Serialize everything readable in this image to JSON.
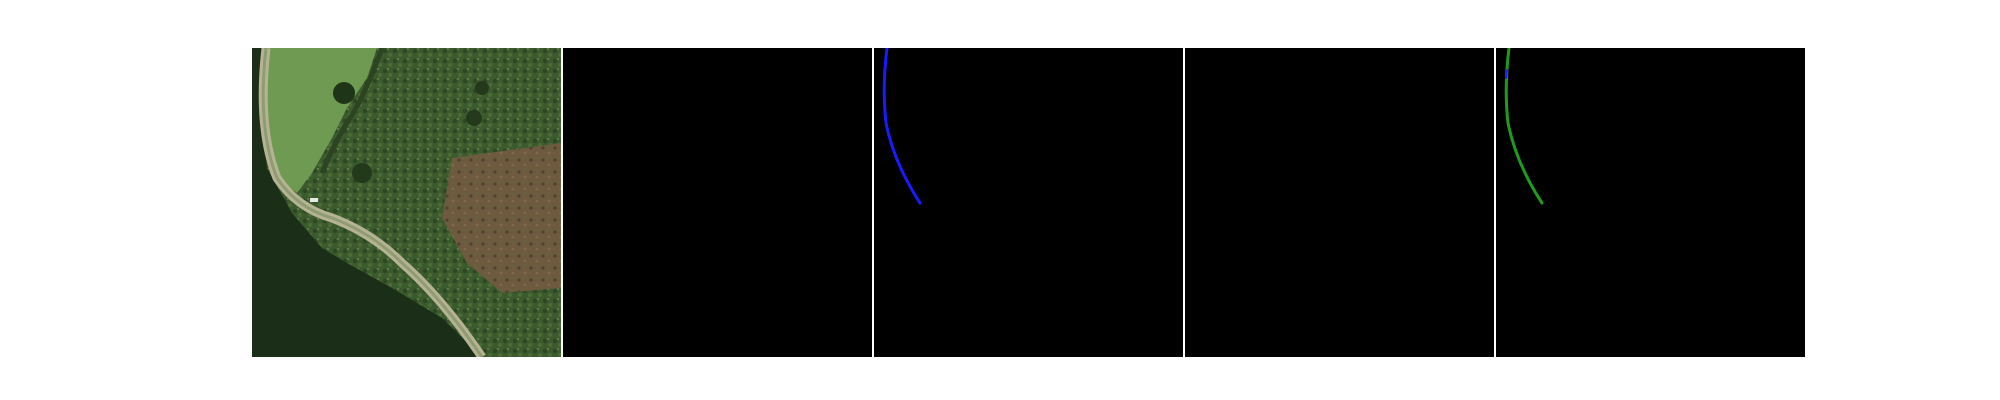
{
  "figure": {
    "background": "#ffffff",
    "panel_background": "#000000",
    "panel_count": 5
  },
  "panels": [
    {
      "name": "aerial-image",
      "kind": "satellite photo"
    },
    {
      "name": "blank-mask-1",
      "kind": "empty mask"
    },
    {
      "name": "blue-line-mask",
      "kind": "line mask",
      "line_color": "#1a1aff"
    },
    {
      "name": "blank-mask-2",
      "kind": "empty mask"
    },
    {
      "name": "green-line-overlay",
      "kind": "line overlay",
      "line_color": "#1f9b1f",
      "secondary_color": "#1a1aff"
    }
  ]
}
